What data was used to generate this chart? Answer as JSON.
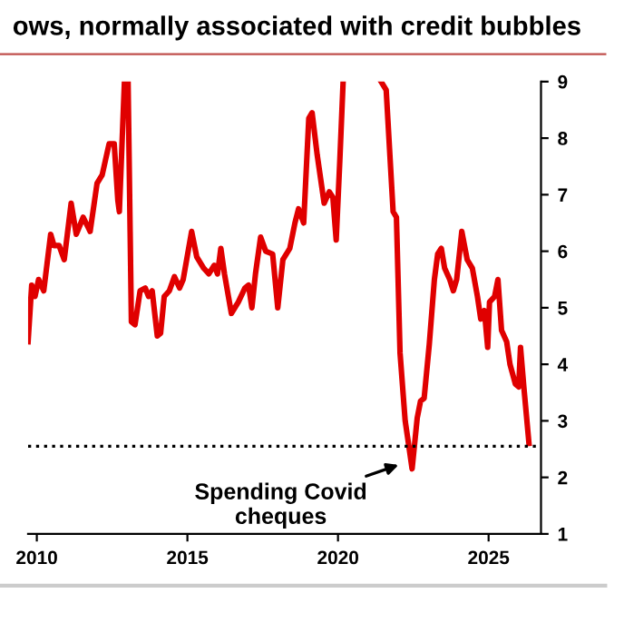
{
  "chart_data": {
    "type": "line",
    "title": "ows, normally associated with credit bubbles",
    "x": [
      2009.71,
      2009.83,
      2009.94,
      2010.06,
      2010.23,
      2010.46,
      2010.57,
      2010.74,
      2010.91,
      2011.14,
      2011.31,
      2011.54,
      2011.77,
      2012.0,
      2012.17,
      2012.4,
      2012.57,
      2012.69,
      2012.74,
      2012.91,
      2013.03,
      2013.14,
      2013.26,
      2013.43,
      2013.6,
      2013.71,
      2013.83,
      2014.0,
      2014.11,
      2014.23,
      2014.4,
      2014.57,
      2014.74,
      2014.86,
      2015.14,
      2015.31,
      2015.54,
      2015.71,
      2015.89,
      2016.0,
      2016.11,
      2016.23,
      2016.46,
      2016.69,
      2016.91,
      2017.03,
      2017.14,
      2017.26,
      2017.43,
      2017.6,
      2017.83,
      2018.0,
      2018.17,
      2018.4,
      2018.57,
      2018.69,
      2018.86,
      2019.03,
      2019.14,
      2019.31,
      2019.54,
      2019.71,
      2019.83,
      2019.94,
      2020.06,
      2020.17,
      2021.0,
      2021.43,
      2021.6,
      2021.83,
      2021.94,
      2022.06,
      2022.23,
      2022.34,
      2022.46,
      2022.63,
      2022.74,
      2022.86,
      2023.03,
      2023.2,
      2023.31,
      2023.43,
      2023.54,
      2023.71,
      2023.83,
      2023.94,
      2024.11,
      2024.29,
      2024.46,
      2024.63,
      2024.74,
      2024.86,
      2024.97,
      2025.03,
      2025.2,
      2025.31,
      2025.43,
      2025.6,
      2025.71,
      2025.89,
      2026.0,
      2026.06,
      2026.17,
      2026.34
    ],
    "series": [
      {
        "color": "#e00000",
        "values": [
          4.4,
          5.4,
          5.2,
          5.5,
          5.3,
          6.3,
          6.1,
          6.1,
          5.85,
          6.85,
          6.3,
          6.6,
          6.35,
          7.2,
          7.35,
          7.9,
          7.9,
          6.9,
          6.7,
          9,
          9,
          4.75,
          4.7,
          5.3,
          5.35,
          5.2,
          5.3,
          4.5,
          4.55,
          5.2,
          5.3,
          5.55,
          5.35,
          5.5,
          6.35,
          5.9,
          5.7,
          5.6,
          5.75,
          5.6,
          6.05,
          5.6,
          4.9,
          5.1,
          5.35,
          5.4,
          5.0,
          5.6,
          6.25,
          6.0,
          5.95,
          5.0,
          5.85,
          6.05,
          6.5,
          6.75,
          6.5,
          8.35,
          8.45,
          7.7,
          6.85,
          7.05,
          6.95,
          6.2,
          7.6,
          9.0,
          null,
          9.0,
          8.85,
          6.7,
          6.6,
          4.2,
          3.0,
          2.6,
          2.15,
          3.05,
          3.35,
          3.4,
          4.35,
          5.5,
          5.95,
          6.05,
          5.7,
          5.5,
          5.3,
          5.5,
          6.35,
          5.85,
          5.7,
          5.2,
          4.8,
          4.95,
          4.3,
          5.1,
          5.2,
          5.5,
          4.6,
          4.4,
          4.0,
          3.65,
          3.6,
          4.3,
          3.6,
          2.6
        ]
      }
    ],
    "xlim": [
      2009.71,
      2026.74
    ],
    "xticks": [
      2010,
      2015,
      2020,
      2025
    ],
    "ylim": [
      1,
      9
    ],
    "yticks": [
      1,
      2,
      3,
      4,
      5,
      6,
      7,
      8,
      9
    ],
    "ref_lines": [
      {
        "axis": "y",
        "value": 2.55,
        "color": "#000000",
        "line_style": "dotted"
      }
    ],
    "annotations": [
      {
        "text": "Spending Covid\ncheques",
        "x": 2022.17,
        "y": 2.25
      }
    ],
    "grid": false,
    "legend": false
  }
}
